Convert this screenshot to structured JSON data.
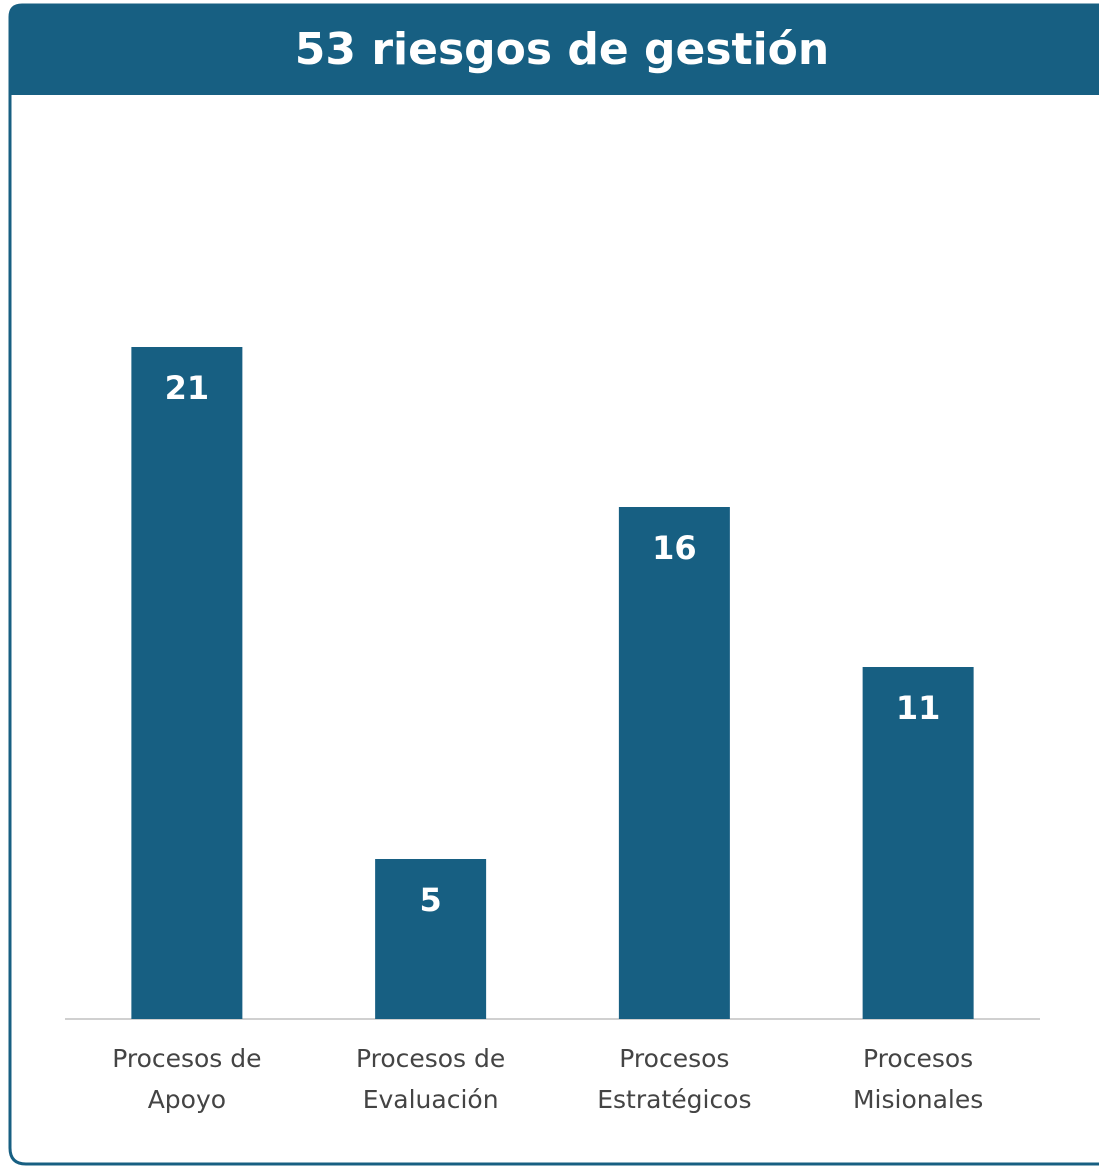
{
  "chart_data": {
    "type": "bar",
    "title": "53 riesgos de gestión",
    "categories": [
      "Procesos de Apoyo",
      "Procesos de Evaluación",
      "Procesos Estratégicos",
      "Procesos Misionales"
    ],
    "values": [
      21,
      5,
      16,
      11
    ],
    "color": "#175f82"
  }
}
